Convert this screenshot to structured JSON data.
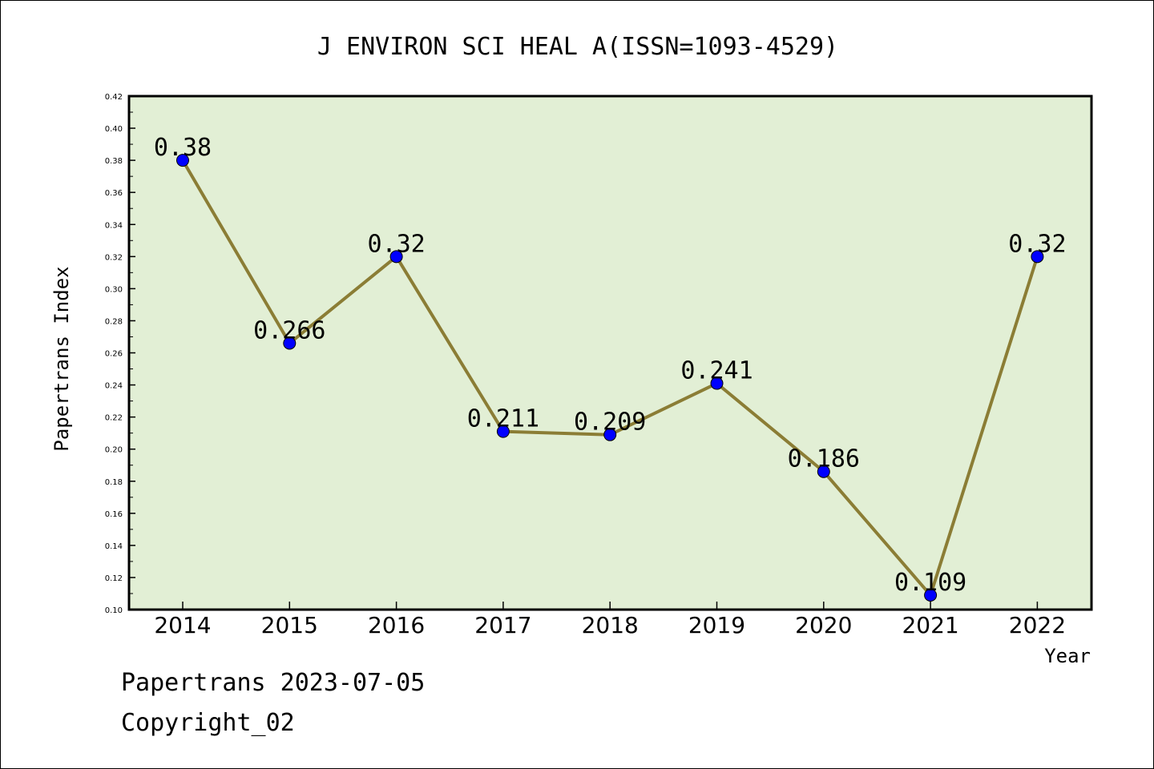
{
  "chart_data": {
    "type": "line",
    "title": "J ENVIRON SCI HEAL A(ISSN=1093-4529)",
    "xlabel": "Year",
    "ylabel": "Papertrans Index",
    "categories": [
      "2014",
      "2015",
      "2016",
      "2017",
      "2018",
      "2019",
      "2020",
      "2021",
      "2022"
    ],
    "series": [
      {
        "values": [
          0.38,
          0.266,
          0.32,
          0.211,
          0.209,
          0.241,
          0.186,
          0.109,
          0.32
        ],
        "labels": [
          "0.38",
          "0.266",
          "0.32",
          "0.211",
          "0.209",
          "0.241",
          "0.186",
          "0.109",
          "0.32"
        ]
      }
    ],
    "ylim": [
      0.1,
      0.42
    ],
    "yticks": [
      "0.10",
      "0.12",
      "0.14",
      "0.16",
      "0.18",
      "0.20",
      "0.22",
      "0.24",
      "0.26",
      "0.28",
      "0.30",
      "0.32",
      "0.34",
      "0.36",
      "0.38",
      "0.40",
      "0.42"
    ],
    "grid": false,
    "legend": "none",
    "colors": {
      "plot_background": "#e2efd5",
      "line": "#8b7d35",
      "marker": "#0000ff"
    }
  },
  "footer": {
    "line1": "Papertrans 2023-07-05",
    "line2": "Copyright_02"
  }
}
